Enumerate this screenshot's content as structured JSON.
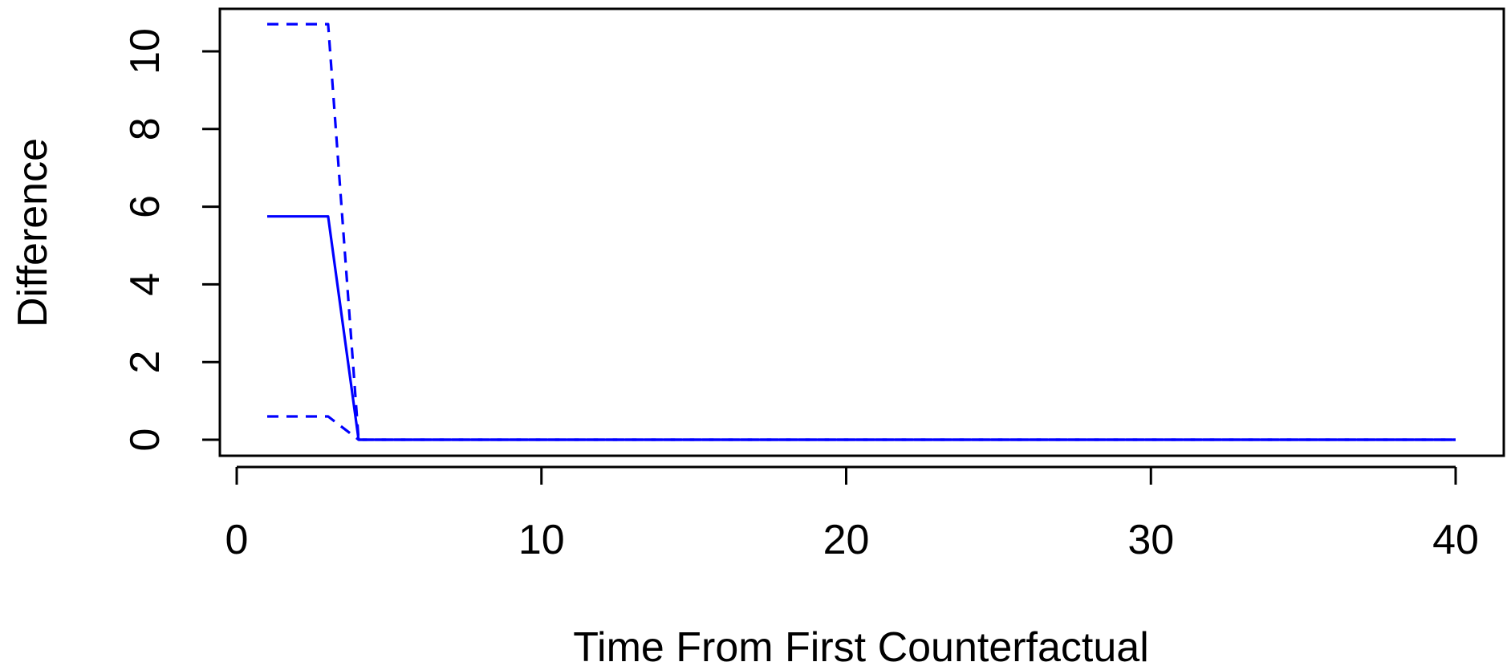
{
  "chart_data": {
    "type": "line",
    "title": "",
    "xlabel": "Time From First Counterfactual",
    "ylabel": "Difference",
    "xlim": [
      0,
      40
    ],
    "ylim": [
      0,
      10
    ],
    "x_ticks": [
      "0",
      "10",
      "20",
      "30",
      "40"
    ],
    "y_ticks": [
      "0",
      "2",
      "4",
      "6",
      "8",
      "10"
    ],
    "grid": false,
    "series": [
      {
        "style": "solid",
        "color": "#0000ff",
        "x": [
          1,
          2,
          3,
          4,
          5,
          6,
          7,
          8,
          9,
          10,
          11,
          12,
          13,
          14,
          15,
          16,
          17,
          18,
          19,
          20,
          21,
          22,
          23,
          24,
          25,
          26,
          27,
          28,
          29,
          30,
          31,
          32,
          33,
          34,
          35,
          36,
          37,
          38,
          39,
          40
        ],
        "y": [
          5.75,
          5.75,
          5.75,
          0,
          0,
          0,
          0,
          0,
          0,
          0,
          0,
          0,
          0,
          0,
          0,
          0,
          0,
          0,
          0,
          0,
          0,
          0,
          0,
          0,
          0,
          0,
          0,
          0,
          0,
          0,
          0,
          0,
          0,
          0,
          0,
          0,
          0,
          0,
          0,
          0
        ]
      },
      {
        "style": "dashed",
        "color": "#0000ff",
        "x": [
          1,
          2,
          3,
          4,
          5,
          6,
          7,
          8,
          9,
          10,
          11,
          12,
          13,
          14,
          15,
          16,
          17,
          18,
          19,
          20,
          21,
          22,
          23,
          24,
          25,
          26,
          27,
          28,
          29,
          30,
          31,
          32,
          33,
          34,
          35,
          36,
          37,
          38,
          39,
          40
        ],
        "y": [
          10.7,
          10.7,
          10.7,
          0,
          0,
          0,
          0,
          0,
          0,
          0,
          0,
          0,
          0,
          0,
          0,
          0,
          0,
          0,
          0,
          0,
          0,
          0,
          0,
          0,
          0,
          0,
          0,
          0,
          0,
          0,
          0,
          0,
          0,
          0,
          0,
          0,
          0,
          0,
          0,
          0
        ]
      },
      {
        "style": "dashed",
        "color": "#0000ff",
        "x": [
          1,
          2,
          3,
          4,
          5,
          6,
          7,
          8,
          9,
          10,
          11,
          12,
          13,
          14,
          15,
          16,
          17,
          18,
          19,
          20,
          21,
          22,
          23,
          24,
          25,
          26,
          27,
          28,
          29,
          30,
          31,
          32,
          33,
          34,
          35,
          36,
          37,
          38,
          39,
          40
        ],
        "y": [
          0.6,
          0.6,
          0.6,
          0,
          0,
          0,
          0,
          0,
          0,
          0,
          0,
          0,
          0,
          0,
          0,
          0,
          0,
          0,
          0,
          0,
          0,
          0,
          0,
          0,
          0,
          0,
          0,
          0,
          0,
          0,
          0,
          0,
          0,
          0,
          0,
          0,
          0,
          0,
          0,
          0
        ]
      }
    ]
  }
}
